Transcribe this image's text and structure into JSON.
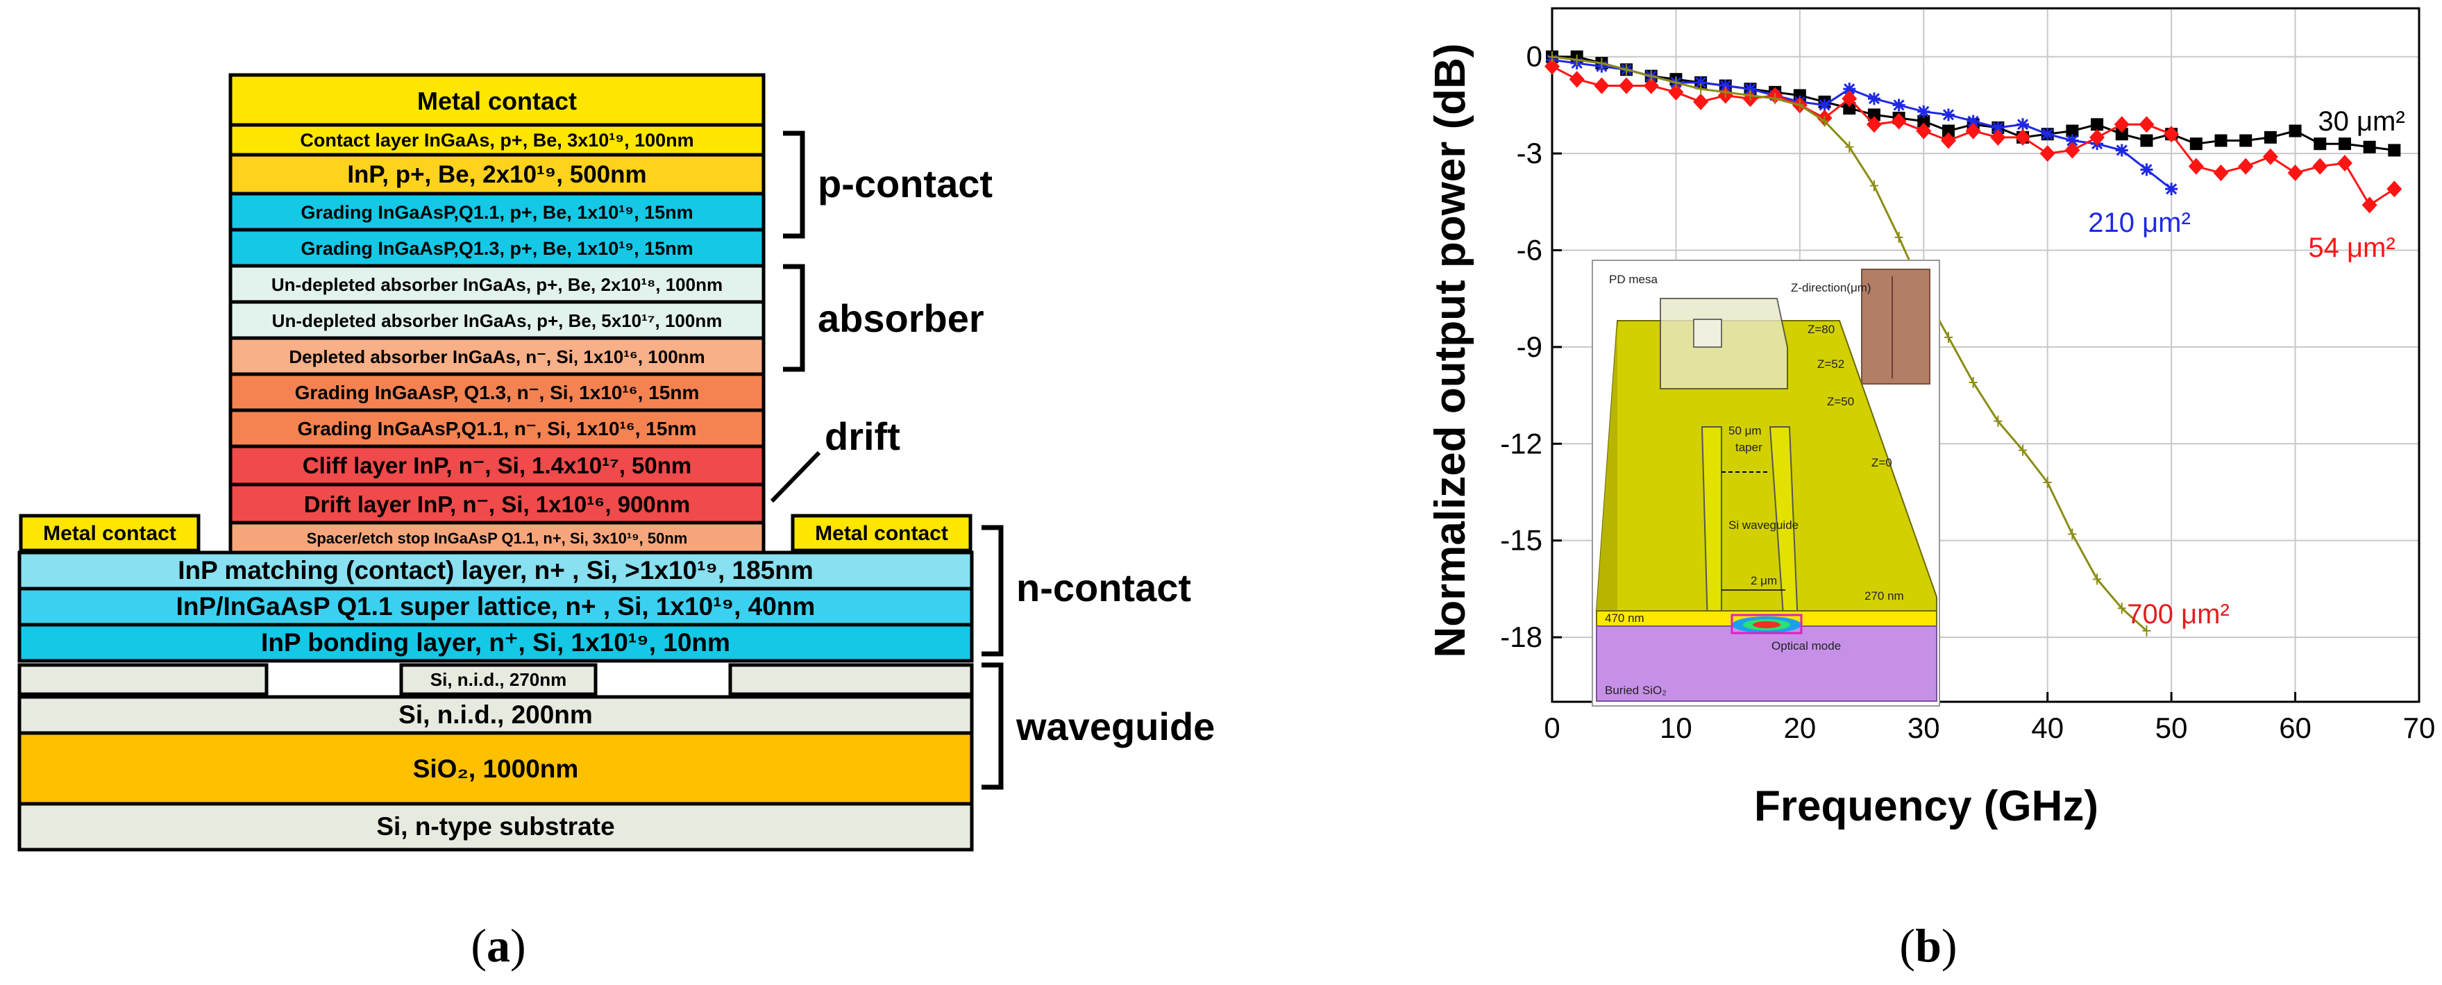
{
  "panel_a": {
    "caption_open": "(",
    "caption_letter": "a",
    "caption_close": ")",
    "layers": {
      "metal_top": "Metal contact",
      "contact_ingaas": "Contact layer InGaAs, p+, Be, 3x10¹⁹, 100nm",
      "inp_p": "InP, p+, Be, 2x10¹⁹, 500nm",
      "grading_q11_p": "Grading InGaAsP,Q1.1, p+, Be, 1x10¹⁹, 15nm",
      "grading_q13_p": "Grading InGaAsP,Q1.3, p+, Be, 1x10¹⁹, 15nm",
      "undep_1": "Un-depleted absorber InGaAs, p+, Be, 2x10¹⁸, 100nm",
      "undep_2": "Un-depleted absorber InGaAs, p+, Be, 5x10¹⁷, 100nm",
      "depleted": "Depleted absorber InGaAs, n⁻, Si, 1x10¹⁶, 100nm",
      "grading_q13_n": "Grading InGaAsP, Q1.3, n⁻, Si, 1x10¹⁶, 15nm",
      "grading_q11_n": "Grading InGaAsP,Q1.1, n⁻, Si, 1x10¹⁶, 15nm",
      "cliff": "Cliff layer InP, n⁻, Si, 1.4x10¹⁷, 50nm",
      "drift": "Drift layer InP, n⁻, Si, 1x10¹⁶, 900nm",
      "spacer": "Spacer/etch stop InGaAsP Q1.1, n+, Si, 3x10¹⁹, 50nm",
      "metal_left": "Metal contact",
      "metal_right": "Metal contact",
      "inp_matching": "InP matching (contact) layer, n+ , Si, >1x10¹⁹, 185nm",
      "superlattice": "InP/InGaAsP Q1.1 super lattice, n+ , Si, 1x10¹⁹, 40nm",
      "bonding": "InP bonding layer, n⁺, Si, 1x10¹⁹, 10nm",
      "si_270": "Si, n.i.d., 270nm",
      "si_200": "Si, n.i.d., 200nm",
      "sio2": "SiO₂, 1000nm",
      "substrate": "Si, n-type substrate"
    },
    "groups": {
      "p_contact": "p-contact",
      "absorber": "absorber",
      "drift": "drift",
      "n_contact": "n-contact",
      "waveguide": "waveguide"
    },
    "colors": {
      "yellow": "#FFE600",
      "gold": "#FFD21E",
      "cyan": "#14C8E6",
      "pale": "#E2F2EC",
      "peach": "#F8B088",
      "orange": "#F58352",
      "red": "#F04A4A",
      "spacer": "#F7A67C",
      "light_blue": "#88E0F0",
      "sky": "#3CD0F0",
      "si": "#E7EADF",
      "sio2": "#FFC000"
    }
  },
  "panel_b": {
    "caption_open": "(",
    "caption_letter": "b",
    "caption_close": ")",
    "inset": {
      "pd_mesa": "PD mesa",
      "z_direction": "Z-direction(μm)",
      "z80": "Z=80",
      "z52": "Z=52",
      "z50": "Z=50",
      "z0": "Z=0",
      "taper_len": "50 μm",
      "taper": "taper",
      "si_waveguide": "Si waveguide",
      "width_2um": "2 μm",
      "t270": "270 nm",
      "t470": "470 nm",
      "optical_mode": "Optical mode",
      "buried_sio2": "Buried SiO₂"
    }
  },
  "chart_data": {
    "type": "line",
    "title": "",
    "xlabel": "Frequency (GHz)",
    "ylabel": "Normalized output power (dB)",
    "xlim": [
      0,
      70
    ],
    "ylim": [
      -20,
      1.5
    ],
    "xticks": [
      "0",
      "10",
      "20",
      "30",
      "40",
      "50",
      "60",
      "70"
    ],
    "yticks": [
      "0",
      "-3",
      "-6",
      "-9",
      "-12",
      "-15",
      "-18"
    ],
    "ytick_values": [
      0,
      -3,
      -6,
      -9,
      -12,
      -15,
      -18
    ],
    "xtick_values": [
      0,
      10,
      20,
      30,
      40,
      50,
      60,
      70
    ],
    "grid": true,
    "series": [
      {
        "name": "30 μm²",
        "label": "30 μm²",
        "color": "#000000",
        "marker": "square",
        "x": [
          0,
          2,
          4,
          6,
          8,
          10,
          12,
          14,
          16,
          18,
          20,
          22,
          24,
          26,
          28,
          30,
          32,
          34,
          36,
          38,
          40,
          42,
          44,
          46,
          48,
          50,
          52,
          54,
          56,
          58,
          60,
          62,
          64,
          66,
          68
        ],
        "y": [
          0.0,
          0.0,
          -0.2,
          -0.4,
          -0.6,
          -0.7,
          -0.8,
          -0.9,
          -1.0,
          -1.1,
          -1.2,
          -1.4,
          -1.6,
          -1.8,
          -1.9,
          -2.0,
          -2.3,
          -2.1,
          -2.2,
          -2.5,
          -2.4,
          -2.3,
          -2.1,
          -2.4,
          -2.6,
          -2.4,
          -2.7,
          -2.6,
          -2.6,
          -2.5,
          -2.3,
          -2.7,
          -2.7,
          -2.8,
          -2.9
        ]
      },
      {
        "name": "210 μm²",
        "label": "210 μm²",
        "color": "#1E28E6",
        "marker": "star",
        "x": [
          0,
          2,
          4,
          6,
          8,
          10,
          12,
          14,
          16,
          18,
          20,
          22,
          24,
          26,
          28,
          30,
          32,
          34,
          36,
          38,
          40,
          42,
          44,
          46,
          48,
          50
        ],
        "y": [
          -0.1,
          -0.2,
          -0.3,
          -0.4,
          -0.6,
          -0.8,
          -0.8,
          -0.9,
          -1.0,
          -1.2,
          -1.4,
          -1.5,
          -1.0,
          -1.3,
          -1.5,
          -1.7,
          -1.8,
          -2.0,
          -2.2,
          -2.1,
          -2.4,
          -2.6,
          -2.7,
          -2.9,
          -3.5,
          -4.1
        ]
      },
      {
        "name": "54 μm²",
        "label": "54 μm²",
        "color": "#FF1414",
        "marker": "diamond",
        "x": [
          0,
          2,
          4,
          6,
          8,
          10,
          12,
          14,
          16,
          18,
          20,
          22,
          24,
          26,
          28,
          30,
          32,
          34,
          36,
          38,
          40,
          42,
          44,
          46,
          48,
          50,
          52,
          54,
          56,
          58,
          60,
          62,
          64,
          66,
          68
        ],
        "y": [
          -0.3,
          -0.7,
          -0.9,
          -0.9,
          -0.9,
          -1.1,
          -1.4,
          -1.2,
          -1.3,
          -1.2,
          -1.5,
          -1.9,
          -1.3,
          -2.1,
          -2.0,
          -2.3,
          -2.6,
          -2.3,
          -2.5,
          -2.5,
          -3.0,
          -2.9,
          -2.5,
          -2.1,
          -2.1,
          -2.4,
          -3.4,
          -3.6,
          -3.4,
          -3.1,
          -3.6,
          -3.4,
          -3.3,
          -4.6,
          -4.1
        ]
      },
      {
        "name": "700 μm²",
        "label": "700 μm²",
        "color": "#8C8C14",
        "marker": "cross",
        "x": [
          0,
          2,
          4,
          6,
          8,
          10,
          12,
          14,
          16,
          18,
          20,
          22,
          24,
          26,
          28,
          30,
          32,
          34,
          36,
          38,
          40,
          42,
          44,
          46,
          48
        ],
        "y": [
          0.0,
          -0.1,
          -0.2,
          -0.4,
          -0.6,
          -0.8,
          -1.0,
          -1.1,
          -1.2,
          -1.3,
          -1.5,
          -2.0,
          -2.8,
          -4.0,
          -5.6,
          -7.3,
          -8.7,
          -10.1,
          -11.3,
          -12.2,
          -13.2,
          -14.8,
          -16.2,
          -17.1,
          -17.8
        ]
      }
    ]
  }
}
